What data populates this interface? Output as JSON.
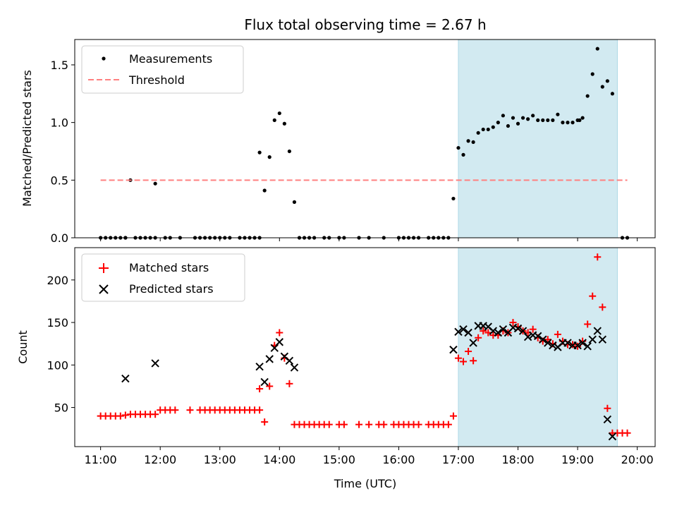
{
  "chart_data": [
    {
      "type": "scatter",
      "title": "Flux total observing time = 2.67 h",
      "xlabel": "",
      "ylabel": "Matched/Predicted stars",
      "xlim": [
        "10:34",
        "20:18"
      ],
      "ylim": [
        0,
        1.72
      ],
      "x_ticks": [
        "11:00",
        "12:00",
        "13:00",
        "14:00",
        "15:00",
        "16:00",
        "17:00",
        "18:00",
        "19:00",
        "20:00"
      ],
      "x_tick_labels_visible": false,
      "y_ticks": [
        0.0,
        0.5,
        1.0,
        1.5
      ],
      "y_tick_labels": [
        "0.0",
        "0.5",
        "1.0",
        "1.5"
      ],
      "shaded_interval": {
        "start": "17:00",
        "end": "19:40",
        "color": "#add8e6"
      },
      "legend_placement": "top-left",
      "legend": [
        "Measurements",
        "Threshold"
      ],
      "series": [
        {
          "name": "Measurements",
          "marker": "dot",
          "color": "#000000",
          "points": [
            [
              "11:00",
              0
            ],
            [
              "11:05",
              0
            ],
            [
              "11:10",
              0
            ],
            [
              "11:15",
              0
            ],
            [
              "11:20",
              0
            ],
            [
              "11:25",
              0
            ],
            [
              "11:25",
              0
            ],
            [
              "11:30",
              0.5
            ],
            [
              "11:35",
              0
            ],
            [
              "11:40",
              0
            ],
            [
              "11:45",
              0
            ],
            [
              "11:50",
              0
            ],
            [
              "11:55",
              0
            ],
            [
              "11:55",
              0.47
            ],
            [
              "12:05",
              0
            ],
            [
              "12:10",
              0
            ],
            [
              "12:20",
              0
            ],
            [
              "12:35",
              0
            ],
            [
              "12:40",
              0
            ],
            [
              "12:45",
              0
            ],
            [
              "12:50",
              0
            ],
            [
              "12:55",
              0
            ],
            [
              "13:00",
              0
            ],
            [
              "13:05",
              0
            ],
            [
              "13:10",
              0
            ],
            [
              "13:20",
              0
            ],
            [
              "13:25",
              0
            ],
            [
              "13:30",
              0
            ],
            [
              "13:35",
              0
            ],
            [
              "13:40",
              0
            ],
            [
              "13:40",
              0.74
            ],
            [
              "13:45",
              0.41
            ],
            [
              "13:50",
              0.7
            ],
            [
              "13:55",
              1.02
            ],
            [
              "14:00",
              1.08
            ],
            [
              "14:05",
              0.99
            ],
            [
              "14:10",
              0.75
            ],
            [
              "14:15",
              0.31
            ],
            [
              "14:20",
              0
            ],
            [
              "14:25",
              0
            ],
            [
              "14:30",
              0
            ],
            [
              "14:35",
              0
            ],
            [
              "14:45",
              0
            ],
            [
              "14:50",
              0
            ],
            [
              "15:00",
              0
            ],
            [
              "15:05",
              0
            ],
            [
              "15:20",
              0
            ],
            [
              "15:30",
              0
            ],
            [
              "15:45",
              0
            ],
            [
              "16:00",
              0
            ],
            [
              "16:05",
              0
            ],
            [
              "16:10",
              0
            ],
            [
              "16:15",
              0
            ],
            [
              "16:20",
              0
            ],
            [
              "16:30",
              0
            ],
            [
              "16:35",
              0
            ],
            [
              "16:40",
              0
            ],
            [
              "16:45",
              0
            ],
            [
              "16:50",
              0
            ],
            [
              "16:55",
              0.34
            ],
            [
              "17:00",
              0.78
            ],
            [
              "17:05",
              0.72
            ],
            [
              "17:10",
              0.84
            ],
            [
              "17:15",
              0.83
            ],
            [
              "17:20",
              0.91
            ],
            [
              "17:25",
              0.94
            ],
            [
              "17:30",
              0.94
            ],
            [
              "17:35",
              0.96
            ],
            [
              "17:40",
              1.0
            ],
            [
              "17:45",
              1.06
            ],
            [
              "17:50",
              0.97
            ],
            [
              "17:55",
              1.04
            ],
            [
              "18:00",
              0.99
            ],
            [
              "18:05",
              1.04
            ],
            [
              "18:10",
              1.03
            ],
            [
              "18:15",
              1.06
            ],
            [
              "18:20",
              1.02
            ],
            [
              "18:25",
              1.02
            ],
            [
              "18:30",
              1.02
            ],
            [
              "18:35",
              1.02
            ],
            [
              "18:40",
              1.07
            ],
            [
              "18:45",
              1.0
            ],
            [
              "18:50",
              1.0
            ],
            [
              "18:55",
              1.0
            ],
            [
              "19:00",
              1.02
            ],
            [
              "19:02",
              1.02
            ],
            [
              "19:05",
              1.04
            ],
            [
              "19:10",
              1.23
            ],
            [
              "19:15",
              1.42
            ],
            [
              "19:20",
              1.64
            ],
            [
              "19:25",
              1.31
            ],
            [
              "19:30",
              1.36
            ],
            [
              "19:35",
              1.25
            ],
            [
              "19:45",
              0
            ],
            [
              "19:50",
              0
            ]
          ]
        },
        {
          "name": "Threshold",
          "style": "dashed",
          "color": "#ff8080",
          "points": [
            [
              "11:00",
              0.5
            ],
            [
              "19:50",
              0.5
            ]
          ]
        }
      ]
    },
    {
      "type": "scatter",
      "title": "",
      "xlabel": "Time (UTC)",
      "ylabel": "Count",
      "xlim": [
        "10:34",
        "20:18"
      ],
      "ylim": [
        4,
        238
      ],
      "x_ticks": [
        "11:00",
        "12:00",
        "13:00",
        "14:00",
        "15:00",
        "16:00",
        "17:00",
        "18:00",
        "19:00",
        "20:00"
      ],
      "x_tick_labels": [
        "11:00",
        "12:00",
        "13:00",
        "14:00",
        "15:00",
        "16:00",
        "17:00",
        "18:00",
        "19:00",
        "20:00"
      ],
      "y_ticks": [
        50,
        100,
        150,
        200
      ],
      "y_tick_labels": [
        "50",
        "100",
        "150",
        "200"
      ],
      "shaded_interval": {
        "start": "17:00",
        "end": "19:40",
        "color": "#add8e6"
      },
      "legend_placement": "top-left",
      "legend": [
        "Matched stars",
        "Predicted stars"
      ],
      "series": [
        {
          "name": "Matched stars",
          "marker": "plus",
          "color": "#ff0000",
          "points": [
            [
              "11:00",
              40
            ],
            [
              "11:05",
              40
            ],
            [
              "11:10",
              40
            ],
            [
              "11:15",
              40
            ],
            [
              "11:20",
              40
            ],
            [
              "11:25",
              41
            ],
            [
              "11:30",
              42
            ],
            [
              "11:35",
              42
            ],
            [
              "11:40",
              42
            ],
            [
              "11:45",
              42
            ],
            [
              "11:50",
              42
            ],
            [
              "11:55",
              42
            ],
            [
              "12:00",
              47
            ],
            [
              "12:05",
              47
            ],
            [
              "12:10",
              47
            ],
            [
              "12:15",
              47
            ],
            [
              "12:30",
              47
            ],
            [
              "12:40",
              47
            ],
            [
              "12:45",
              47
            ],
            [
              "12:50",
              47
            ],
            [
              "12:55",
              47
            ],
            [
              "13:00",
              47
            ],
            [
              "13:05",
              47
            ],
            [
              "13:10",
              47
            ],
            [
              "13:15",
              47
            ],
            [
              "13:20",
              47
            ],
            [
              "13:25",
              47
            ],
            [
              "13:30",
              47
            ],
            [
              "13:35",
              47
            ],
            [
              "13:40",
              47
            ],
            [
              "13:40",
              72
            ],
            [
              "13:45",
              33
            ],
            [
              "13:50",
              75
            ],
            [
              "13:55",
              123
            ],
            [
              "14:00",
              138
            ],
            [
              "14:05",
              108
            ],
            [
              "14:10",
              78
            ],
            [
              "14:15",
              30
            ],
            [
              "14:20",
              30
            ],
            [
              "14:25",
              30
            ],
            [
              "14:30",
              30
            ],
            [
              "14:35",
              30
            ],
            [
              "14:40",
              30
            ],
            [
              "14:45",
              30
            ],
            [
              "14:50",
              30
            ],
            [
              "15:00",
              30
            ],
            [
              "15:05",
              30
            ],
            [
              "15:20",
              30
            ],
            [
              "15:30",
              30
            ],
            [
              "15:40",
              30
            ],
            [
              "15:45",
              30
            ],
            [
              "15:55",
              30
            ],
            [
              "16:00",
              30
            ],
            [
              "16:05",
              30
            ],
            [
              "16:10",
              30
            ],
            [
              "16:15",
              30
            ],
            [
              "16:20",
              30
            ],
            [
              "16:30",
              30
            ],
            [
              "16:35",
              30
            ],
            [
              "16:40",
              30
            ],
            [
              "16:45",
              30
            ],
            [
              "16:50",
              30
            ],
            [
              "16:55",
              40
            ],
            [
              "17:00",
              108
            ],
            [
              "17:05",
              104
            ],
            [
              "17:10",
              116
            ],
            [
              "17:15",
              105
            ],
            [
              "17:20",
              132
            ],
            [
              "17:25",
              140
            ],
            [
              "17:30",
              138
            ],
            [
              "17:35",
              135
            ],
            [
              "17:40",
              135
            ],
            [
              "17:45",
              140
            ],
            [
              "17:50",
              138
            ],
            [
              "17:55",
              150
            ],
            [
              "18:00",
              145
            ],
            [
              "18:05",
              140
            ],
            [
              "18:10",
              138
            ],
            [
              "18:15",
              142
            ],
            [
              "18:20",
              132
            ],
            [
              "18:25",
              128
            ],
            [
              "18:30",
              130
            ],
            [
              "18:35",
              125
            ],
            [
              "18:40",
              136
            ],
            [
              "18:45",
              128
            ],
            [
              "18:50",
              124
            ],
            [
              "18:55",
              124
            ],
            [
              "19:00",
              122
            ],
            [
              "19:05",
              128
            ],
            [
              "19:10",
              148
            ],
            [
              "19:15",
              181
            ],
            [
              "19:20",
              227
            ],
            [
              "19:25",
              168
            ],
            [
              "19:30",
              49
            ],
            [
              "19:35",
              20
            ],
            [
              "19:40",
              20
            ],
            [
              "19:45",
              20
            ],
            [
              "19:50",
              20
            ]
          ]
        },
        {
          "name": "Predicted stars",
          "marker": "x",
          "color": "#000000",
          "points": [
            [
              "11:25",
              84
            ],
            [
              "11:55",
              102
            ],
            [
              "13:40",
              98
            ],
            [
              "13:45",
              80
            ],
            [
              "13:50",
              107
            ],
            [
              "13:55",
              120
            ],
            [
              "14:00",
              127
            ],
            [
              "14:05",
              110
            ],
            [
              "14:10",
              105
            ],
            [
              "14:15",
              97
            ],
            [
              "16:55",
              118
            ],
            [
              "17:00",
              139
            ],
            [
              "17:05",
              142
            ],
            [
              "17:10",
              138
            ],
            [
              "17:15",
              126
            ],
            [
              "17:20",
              146
            ],
            [
              "17:25",
              146
            ],
            [
              "17:30",
              145
            ],
            [
              "17:35",
              140
            ],
            [
              "17:40",
              138
            ],
            [
              "17:45",
              142
            ],
            [
              "17:50",
              138
            ],
            [
              "17:55",
              144
            ],
            [
              "18:00",
              143
            ],
            [
              "18:05",
              140
            ],
            [
              "18:10",
              133
            ],
            [
              "18:15",
              135
            ],
            [
              "18:20",
              134
            ],
            [
              "18:25",
              130
            ],
            [
              "18:30",
              126
            ],
            [
              "18:35",
              123
            ],
            [
              "18:40",
              121
            ],
            [
              "18:45",
              126
            ],
            [
              "18:50",
              126
            ],
            [
              "18:55",
              123
            ],
            [
              "19:00",
              123
            ],
            [
              "19:05",
              126
            ],
            [
              "19:10",
              122
            ],
            [
              "19:15",
              130
            ],
            [
              "19:20",
              140
            ],
            [
              "19:25",
              130
            ],
            [
              "19:30",
              36
            ],
            [
              "19:35",
              16
            ]
          ]
        }
      ]
    }
  ]
}
